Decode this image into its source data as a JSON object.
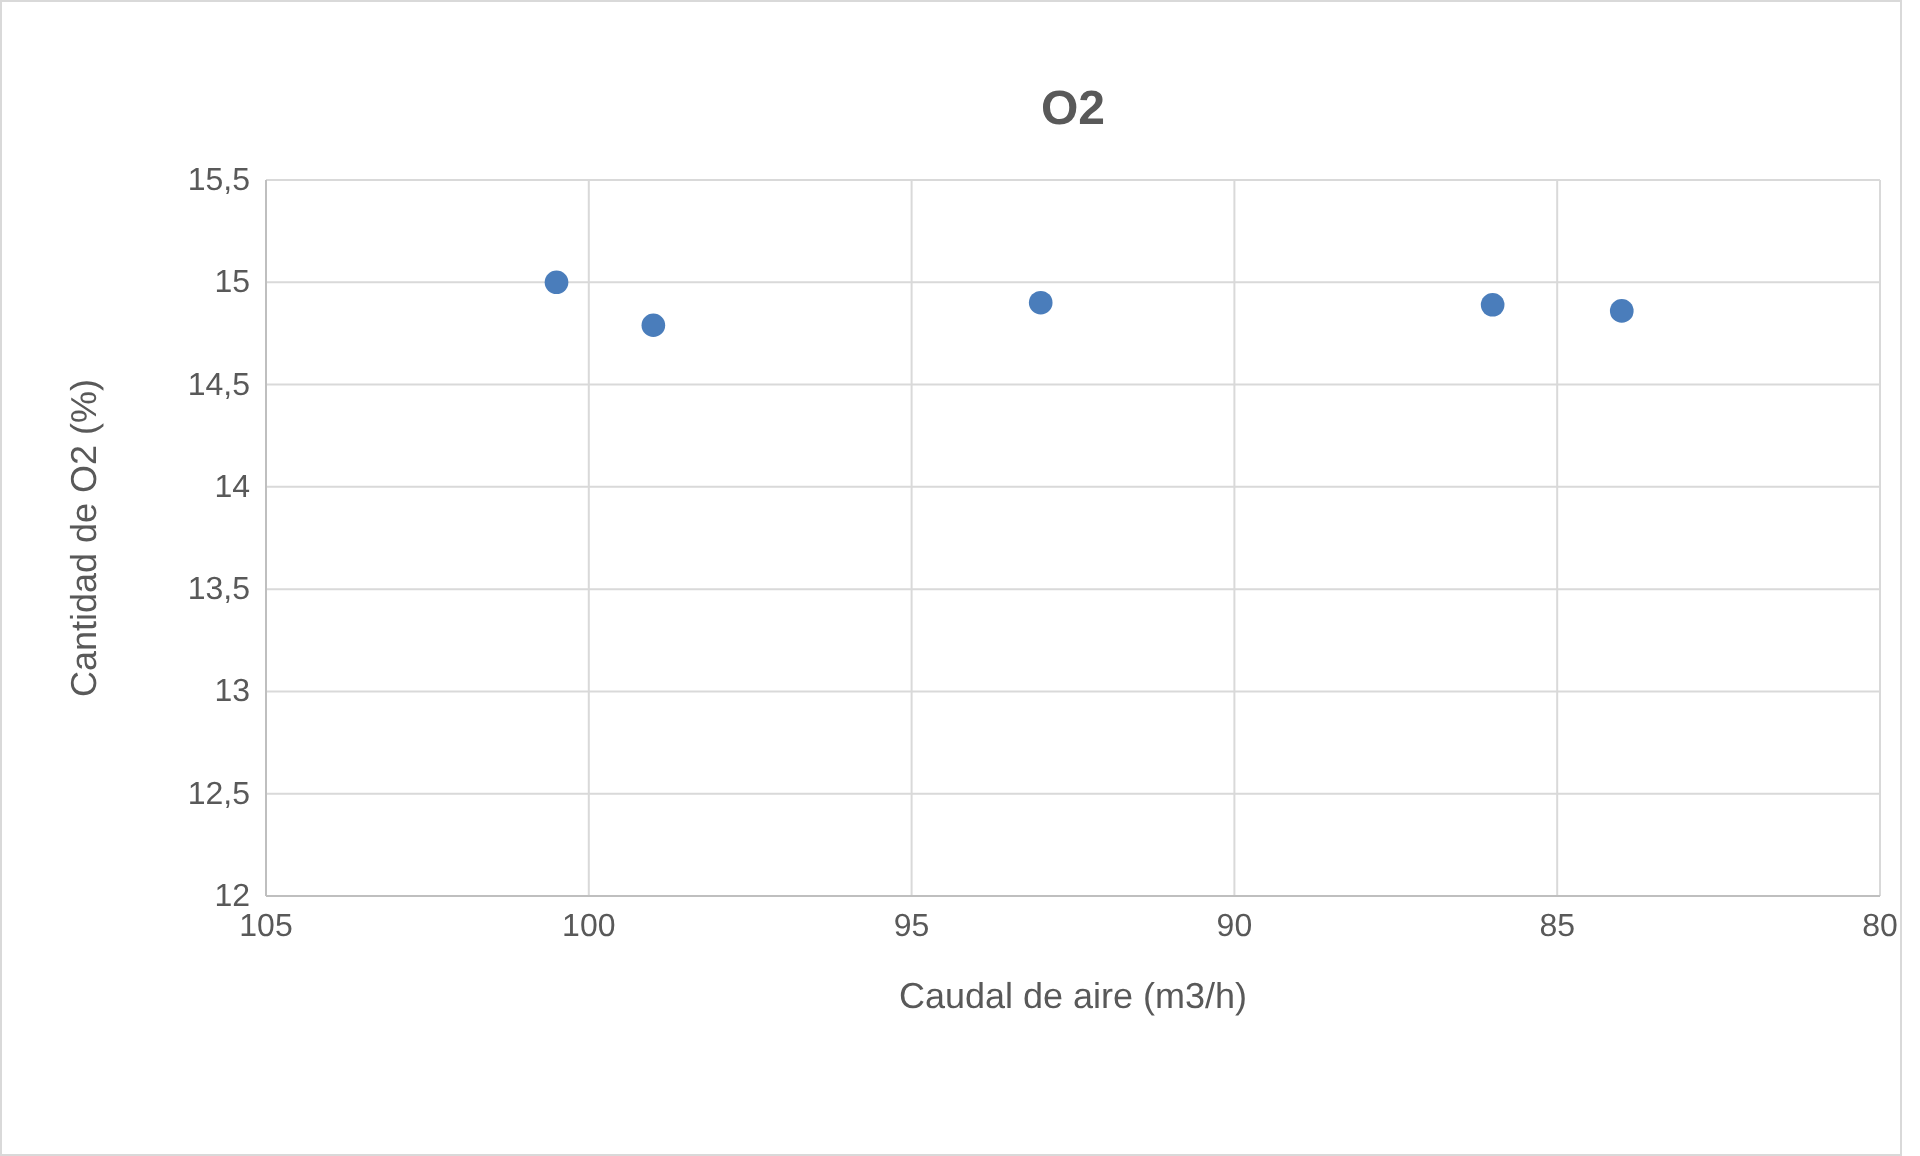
{
  "chart_data": {
    "type": "scatter",
    "title": "O2",
    "xlabel": "Caudal de aire (m3/h)",
    "ylabel": "Cantidad de O2 (%)",
    "x": [
      100.5,
      99,
      93,
      86,
      84
    ],
    "series": [
      {
        "color": "#4a7dbb",
        "values": [
          15.0,
          14.79,
          14.9,
          14.89,
          14.86
        ]
      }
    ],
    "xlim": [
      105,
      80
    ],
    "xticks": [
      105,
      100,
      95,
      90,
      85,
      80
    ],
    "ylim": [
      12,
      15.5
    ],
    "yticks": [
      {
        "value": 12,
        "label": "12"
      },
      {
        "value": 12.5,
        "label": "12,5"
      },
      {
        "value": 13,
        "label": "13"
      },
      {
        "value": 13.5,
        "label": "13,5"
      },
      {
        "value": 14,
        "label": "14"
      },
      {
        "value": 14.5,
        "label": "14,5"
      },
      {
        "value": 15,
        "label": "15"
      },
      {
        "value": 15.5,
        "label": "15,5"
      }
    ],
    "grid": true,
    "marker": "circle"
  }
}
